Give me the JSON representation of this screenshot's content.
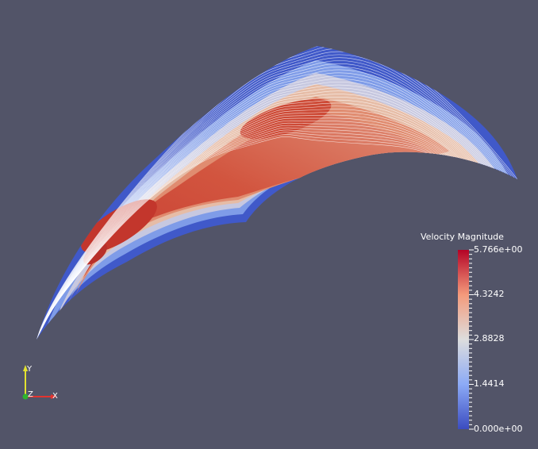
{
  "scene": {
    "background": "#525468",
    "field_name": "Velocity Magnitude",
    "colormap": [
      "#3b4cc0",
      "#dddddd",
      "#b40426"
    ],
    "line_color": "#ffffff"
  },
  "legend": {
    "title": "Velocity Magnitude",
    "labels": [
      "5.766e+00",
      "4.3242",
      "2.8828",
      "1.4414",
      "0.000e+00"
    ],
    "range": [
      0.0,
      5.766
    ]
  },
  "orientation_axes": {
    "x_label": "X",
    "y_label": "Y",
    "z_label": "Z",
    "x_color": "#e3342f",
    "y_color": "#e3e32f",
    "z_color": "#2fb32f"
  }
}
